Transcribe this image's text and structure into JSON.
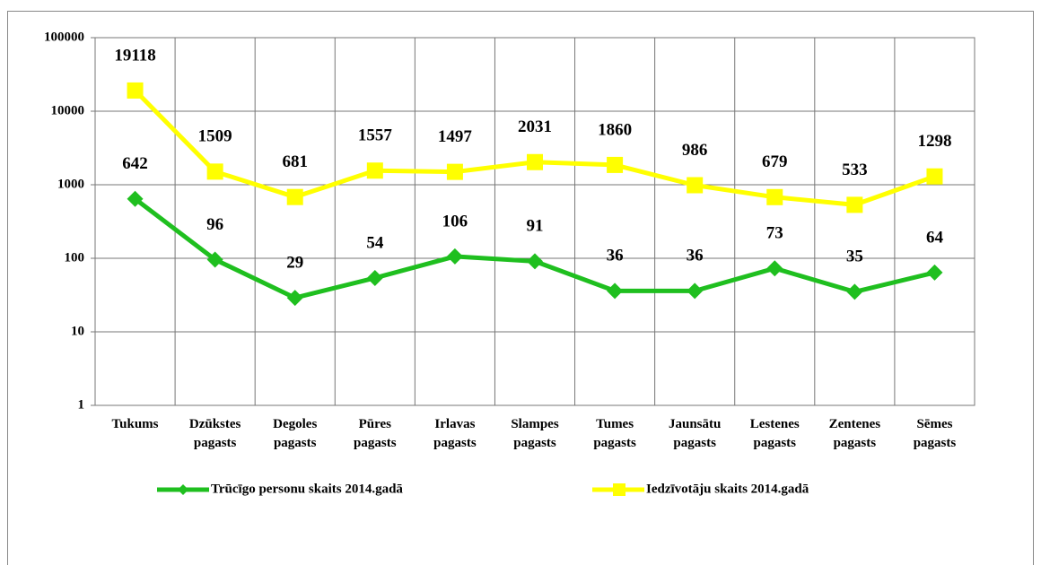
{
  "chart_data": {
    "type": "line",
    "categories": [
      "Tukums",
      "Dzūkstes pagasts",
      "Degoles pagasts",
      "Pūres pagasts",
      "Irlavas pagasts",
      "Slampes pagasts",
      "Tumes pagasts",
      "Jaunsātu pagasts",
      "Lestenes pagasts",
      "Zentenes pagasts",
      "Sēmes pagasts"
    ],
    "series": [
      {
        "name": "Trūcīgo personu skaits 2014.gadā",
        "color": "#1fbf1f",
        "marker": "diamond",
        "values": [
          642,
          96,
          29,
          54,
          106,
          91,
          36,
          36,
          73,
          35,
          64
        ]
      },
      {
        "name": "Iedzīvotāju skaits 2014.gadā",
        "color": "#ffff00",
        "marker": "square",
        "values": [
          19118,
          1509,
          681,
          1557,
          1497,
          2031,
          1860,
          986,
          679,
          533,
          1298
        ]
      }
    ],
    "ylim": [
      1,
      100000
    ],
    "yticks": [
      1,
      10,
      100,
      1000,
      10000,
      100000
    ],
    "log_scale": true,
    "grid": true,
    "legend": "bottom"
  }
}
